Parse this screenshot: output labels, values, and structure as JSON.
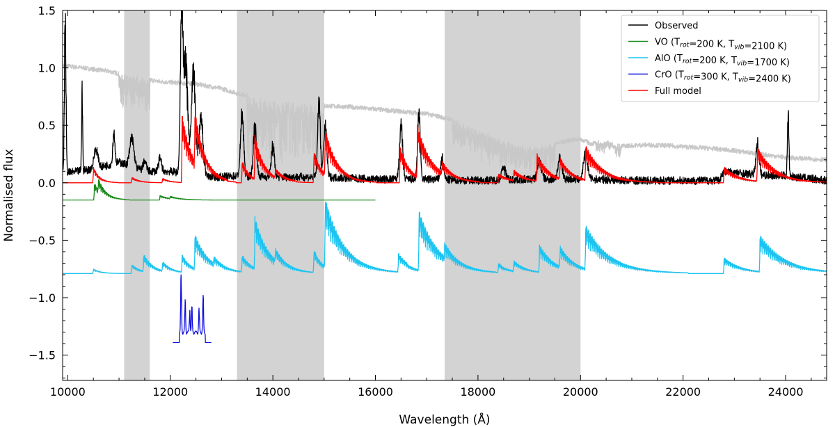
{
  "chart_data": {
    "type": "line",
    "xlabel": "Wavelength (Å)",
    "ylabel": "Normalised flux",
    "xlim": [
      9900,
      24800
    ],
    "ylim": [
      -1.72,
      1.5
    ],
    "grid": false,
    "legend_position": "top-right",
    "x_ticks": [
      10000,
      12000,
      14000,
      16000,
      18000,
      20000,
      22000,
      24000
    ],
    "y_ticks": [
      -1.5,
      -1.0,
      -0.5,
      0.0,
      0.5,
      1.0,
      1.5
    ],
    "x_tick_labels": [
      "10000",
      "12000",
      "14000",
      "16000",
      "18000",
      "20000",
      "22000",
      "24000"
    ],
    "y_tick_labels": [
      "−1.5",
      "−1.0",
      "−0.5",
      "0.0",
      "0.5",
      "1.0",
      "1.5"
    ],
    "shaded_bands": [
      [
        11100,
        11600
      ],
      [
        13300,
        15000
      ],
      [
        17350,
        20000
      ]
    ],
    "colors": {
      "observed": "#000000",
      "vo": "#1a8a1a",
      "alo": "#1ec4f0",
      "cro": "#1010e0",
      "full_model": "#ff0000",
      "reference": "#c8c8c8",
      "band": "#d3d3d3"
    },
    "legend": [
      {
        "series": "observed",
        "name": "Observed",
        "parts": []
      },
      {
        "series": "vo",
        "name": "",
        "parts": [
          [
            "VO (T",
            ""
          ],
          [
            "rot",
            "sub"
          ],
          [
            "=200 K, T",
            ""
          ],
          [
            "vib",
            "sub"
          ],
          [
            "=2100 K)",
            ""
          ]
        ]
      },
      {
        "series": "alo",
        "name": "",
        "parts": [
          [
            "AlO (T",
            ""
          ],
          [
            "rot",
            "sub"
          ],
          [
            "=200 K, T",
            ""
          ],
          [
            "vib",
            "sub"
          ],
          [
            "=1700 K)",
            ""
          ]
        ]
      },
      {
        "series": "cro",
        "name": "",
        "parts": [
          [
            "CrO (T",
            ""
          ],
          [
            "rot",
            "sub"
          ],
          [
            "=300 K, T",
            ""
          ],
          [
            "vib",
            "sub"
          ],
          [
            "=2400 K)",
            ""
          ]
        ]
      },
      {
        "series": "full_model",
        "name": "Full model",
        "parts": []
      }
    ],
    "series": [
      {
        "id": "reference",
        "baseline": [
          [
            9900,
            1.02
          ],
          [
            10300,
            1.0
          ],
          [
            10800,
            0.97
          ],
          [
            11300,
            0.92
          ],
          [
            11800,
            0.88
          ],
          [
            12500,
            0.86
          ],
          [
            13000,
            0.82
          ],
          [
            13300,
            0.78
          ],
          [
            13800,
            0.72
          ],
          [
            14500,
            0.68
          ],
          [
            15000,
            0.67
          ],
          [
            15500,
            0.66
          ],
          [
            16000,
            0.64
          ],
          [
            16500,
            0.62
          ],
          [
            17000,
            0.6
          ],
          [
            17500,
            0.55
          ],
          [
            18000,
            0.45
          ],
          [
            18600,
            0.34
          ],
          [
            19200,
            0.3
          ],
          [
            19500,
            0.34
          ],
          [
            19800,
            0.37
          ],
          [
            20000,
            0.38
          ],
          [
            20200,
            0.34
          ],
          [
            20500,
            0.36
          ],
          [
            20800,
            0.32
          ],
          [
            21300,
            0.33
          ],
          [
            21800,
            0.32
          ],
          [
            22500,
            0.3
          ],
          [
            23000,
            0.28
          ],
          [
            23500,
            0.25
          ],
          [
            24000,
            0.22
          ],
          [
            24800,
            0.2
          ]
        ],
        "noise": 0.02,
        "dips": [
          [
            11000,
            11600,
            0.3
          ],
          [
            13500,
            15000,
            0.55
          ],
          [
            17500,
            19500,
            0.25
          ],
          [
            20300,
            20800,
            0.1
          ]
        ]
      },
      {
        "id": "observed",
        "baseline": [
          [
            9900,
            0.08
          ],
          [
            10500,
            0.12
          ],
          [
            11000,
            0.18
          ],
          [
            11500,
            0.1
          ],
          [
            12000,
            0.1
          ],
          [
            12500,
            0.06
          ],
          [
            13000,
            0.05
          ],
          [
            13300,
            0.06
          ],
          [
            14000,
            0.05
          ],
          [
            15000,
            0.05
          ],
          [
            16000,
            0.03
          ],
          [
            17000,
            0.03
          ],
          [
            18000,
            0.02
          ],
          [
            19000,
            0.03
          ],
          [
            20000,
            0.03
          ],
          [
            20300,
            0.03
          ],
          [
            21000,
            0.02
          ],
          [
            22000,
            0.02
          ],
          [
            22700,
            0.02
          ],
          [
            22800,
            0.1
          ],
          [
            23400,
            0.07
          ],
          [
            24000,
            0.06
          ],
          [
            24800,
            0.02
          ]
        ],
        "noise": 0.035,
        "peaks": [
          [
            9950,
            1.5,
            15
          ],
          [
            10280,
            0.8,
            10
          ],
          [
            10550,
            0.18,
            40
          ],
          [
            10900,
            0.3,
            20
          ],
          [
            11250,
            0.28,
            40
          ],
          [
            11500,
            0.1,
            30
          ],
          [
            11800,
            0.12,
            30
          ],
          [
            12220,
            1.5,
            25
          ],
          [
            12300,
            1.1,
            40
          ],
          [
            12450,
            1.0,
            40
          ],
          [
            12600,
            0.55,
            40
          ],
          [
            13400,
            0.6,
            30
          ],
          [
            13650,
            0.5,
            30
          ],
          [
            14000,
            0.3,
            30
          ],
          [
            14900,
            0.75,
            25
          ],
          [
            15020,
            0.48,
            30
          ],
          [
            16500,
            0.52,
            30
          ],
          [
            16850,
            0.65,
            25
          ],
          [
            17300,
            0.2,
            30
          ],
          [
            18500,
            0.12,
            40
          ],
          [
            19200,
            0.18,
            40
          ],
          [
            19600,
            0.2,
            40
          ],
          [
            20100,
            0.25,
            40
          ],
          [
            23450,
            0.3,
            30
          ],
          [
            24050,
            0.58,
            15
          ]
        ]
      },
      {
        "id": "full_model",
        "baseline": [
          [
            9900,
            0.0
          ],
          [
            24800,
            0.0
          ]
        ],
        "noise": 0.0,
        "bands": [
          [
            10500,
            0.14,
            120
          ],
          [
            11250,
            0.05,
            150
          ],
          [
            11850,
            0.04,
            150
          ],
          [
            12230,
            0.6,
            220
          ],
          [
            12480,
            0.45,
            200
          ],
          [
            13400,
            0.2,
            150
          ],
          [
            13650,
            0.38,
            200
          ],
          [
            14050,
            0.08,
            200
          ],
          [
            14800,
            0.28,
            180
          ],
          [
            15020,
            0.4,
            250
          ],
          [
            16480,
            0.32,
            200
          ],
          [
            16820,
            0.45,
            300
          ],
          [
            17300,
            0.1,
            200
          ],
          [
            18400,
            0.08,
            250
          ],
          [
            18700,
            0.09,
            250
          ],
          [
            19150,
            0.24,
            250
          ],
          [
            19600,
            0.18,
            250
          ],
          [
            20100,
            0.3,
            350
          ],
          [
            22800,
            0.14,
            300
          ],
          [
            23450,
            0.3,
            350
          ]
        ]
      },
      {
        "id": "vo",
        "baseline": [
          [
            9900,
            -0.15
          ],
          [
            16000,
            -0.15
          ]
        ],
        "noise": 0.0,
        "bands": [
          [
            10520,
            0.15,
            150
          ],
          [
            10600,
            0.1,
            150
          ],
          [
            11800,
            0.04,
            200
          ],
          [
            12000,
            0.02,
            200
          ]
        ]
      },
      {
        "id": "alo",
        "baseline": [
          [
            9900,
            -0.79
          ],
          [
            24800,
            -0.79
          ]
        ],
        "noise": 0.0,
        "bands": [
          [
            10500,
            0.04,
            150
          ],
          [
            11250,
            0.08,
            180
          ],
          [
            11480,
            0.15,
            200
          ],
          [
            11850,
            0.08,
            200
          ],
          [
            12230,
            0.15,
            200
          ],
          [
            12480,
            0.3,
            300
          ],
          [
            12850,
            0.06,
            200
          ],
          [
            13400,
            0.15,
            200
          ],
          [
            13650,
            0.45,
            300
          ],
          [
            14050,
            0.1,
            200
          ],
          [
            14800,
            0.2,
            200
          ],
          [
            15020,
            0.6,
            400
          ],
          [
            16450,
            0.16,
            250
          ],
          [
            16850,
            0.52,
            400
          ],
          [
            17350,
            0.12,
            250
          ],
          [
            18400,
            0.08,
            250
          ],
          [
            18700,
            0.09,
            250
          ],
          [
            19200,
            0.24,
            300
          ],
          [
            19600,
            0.18,
            300
          ],
          [
            20100,
            0.38,
            500
          ],
          [
            22800,
            0.14,
            350
          ],
          [
            23500,
            0.32,
            500
          ]
        ]
      },
      {
        "id": "cro",
        "baseline": [
          [
            12050,
            -1.39
          ],
          [
            12800,
            -1.39
          ]
        ],
        "noise": 0.0,
        "plateau": [
          12180,
          12680,
          0.1
        ],
        "peaks": [
          [
            12210,
            0.55,
            8
          ],
          [
            12290,
            0.3,
            8
          ],
          [
            12380,
            0.2,
            8
          ],
          [
            12420,
            0.25,
            8
          ],
          [
            12560,
            0.22,
            8
          ],
          [
            12640,
            0.35,
            8
          ]
        ]
      }
    ]
  }
}
